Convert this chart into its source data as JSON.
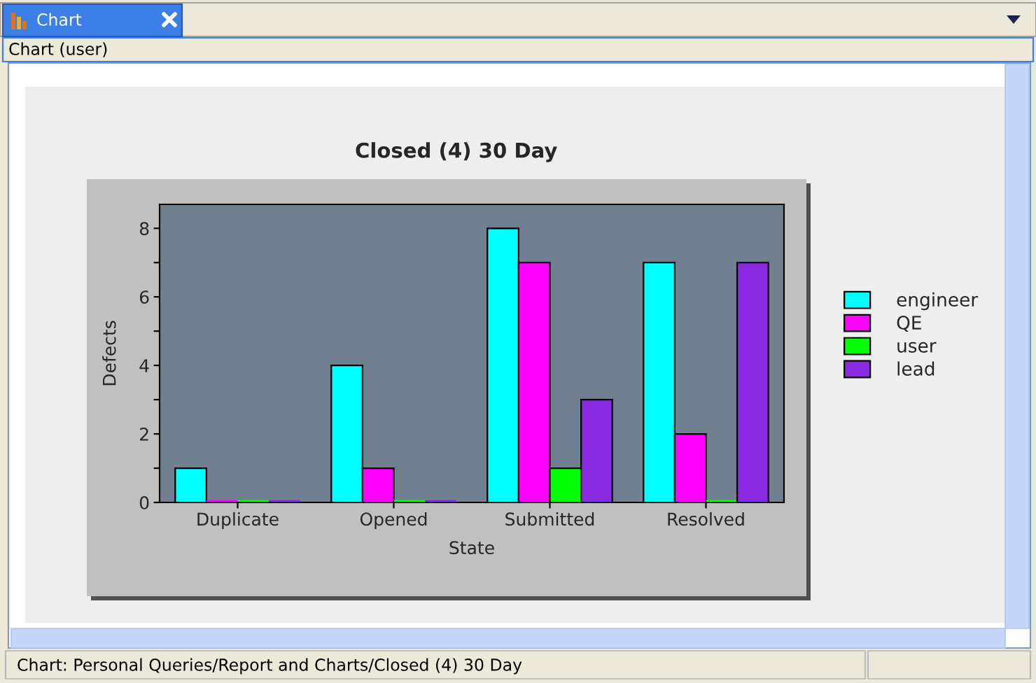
{
  "chart_data": {
    "type": "bar",
    "title": "Closed (4) 30 Day",
    "xlabel": "State",
    "ylabel": "Defects",
    "categories": [
      "Duplicate",
      "Opened",
      "Submitted",
      "Resolved"
    ],
    "series": [
      {
        "name": "engineer",
        "color": "#00ffff",
        "values": [
          1,
          4,
          8,
          7
        ]
      },
      {
        "name": "QE",
        "color": "#ff00ff",
        "values": [
          0,
          1,
          7,
          2
        ]
      },
      {
        "name": "user",
        "color": "#00ff00",
        "values": [
          0,
          0,
          1,
          0
        ]
      },
      {
        "name": "lead",
        "color": "#8a2be2",
        "values": [
          0,
          0,
          3,
          7
        ]
      }
    ],
    "ylim": [
      0,
      8.7
    ],
    "yticks": [
      0,
      {
        "value": 1,
        "label": null
      },
      2,
      {
        "value": 3,
        "label": null
      },
      4,
      {
        "value": 5,
        "label": null
      },
      6,
      {
        "value": 7,
        "label": null
      },
      8
    ],
    "legend": "right",
    "annotations": [
      "Chart",
      "Chart (user)",
      "Chart: Personal Queries/Report and Charts/Closed (4) 30 Day"
    ]
  }
}
